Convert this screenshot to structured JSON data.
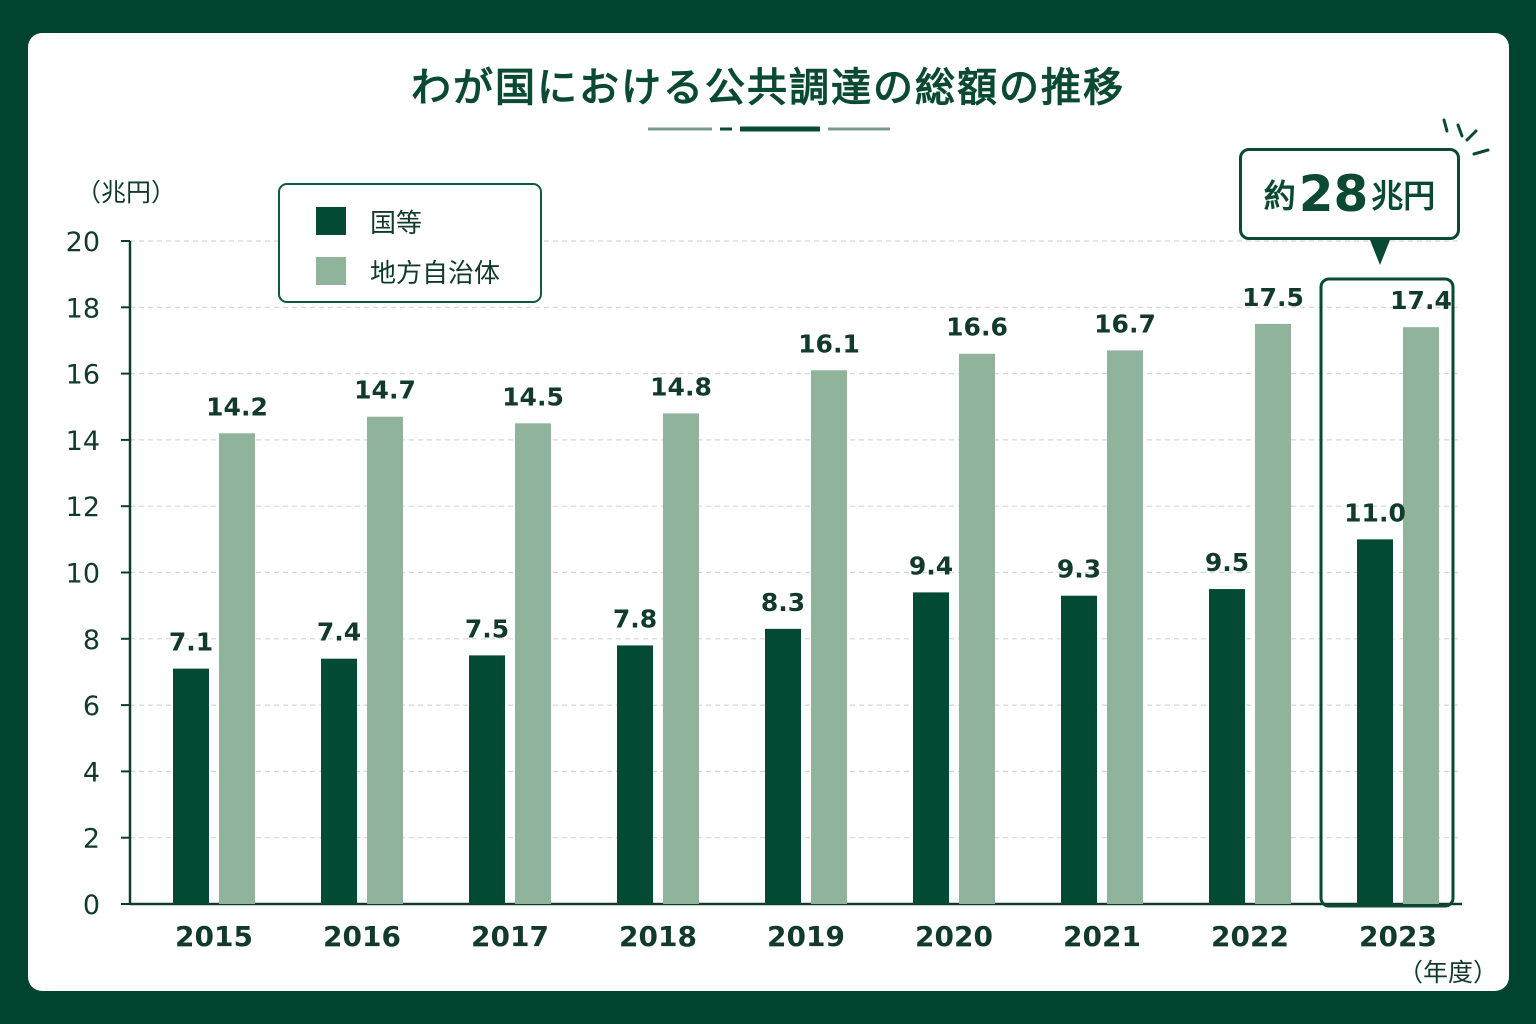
{
  "title": "わが国における公共調達の総額の推移",
  "y_unit": "（兆円）",
  "x_unit": "（年度）",
  "legend": {
    "national": "国等",
    "local": "地方自治体"
  },
  "callout": {
    "prefix": "約",
    "number": "28",
    "suffix": "兆円"
  },
  "colors": {
    "background": "#024330",
    "national": "#024a33",
    "local": "#8fb39b",
    "text": "#123a2c"
  },
  "chart_data": {
    "type": "bar",
    "title": "わが国における公共調達の総額の推移",
    "ylabel": "（兆円）",
    "xlabel": "（年度）",
    "categories": [
      "2015",
      "2016",
      "2017",
      "2018",
      "2019",
      "2020",
      "2021",
      "2022",
      "2023"
    ],
    "series": [
      {
        "name": "国等",
        "values": [
          7.1,
          7.4,
          7.5,
          7.8,
          8.3,
          9.4,
          9.3,
          9.5,
          11.0
        ],
        "labels": [
          "7.1",
          "7.4",
          "7.5",
          "7.8",
          "8.3",
          "9.4",
          "9.3",
          "9.5",
          "11.0"
        ]
      },
      {
        "name": "地方自治体",
        "values": [
          14.2,
          14.7,
          14.5,
          14.8,
          16.1,
          16.6,
          16.7,
          17.5,
          17.4
        ],
        "labels": [
          "14.2",
          "14.7",
          "14.5",
          "14.8",
          "16.1",
          "16.6",
          "16.7",
          "17.5",
          "17.4"
        ]
      }
    ],
    "ylim": [
      0,
      20
    ],
    "yticks": [
      "0",
      "2",
      "4",
      "6",
      "8",
      "10",
      "12",
      "14",
      "16",
      "18",
      "20"
    ],
    "grid": true,
    "legend_position": "top-left",
    "highlight_category": "2023"
  }
}
